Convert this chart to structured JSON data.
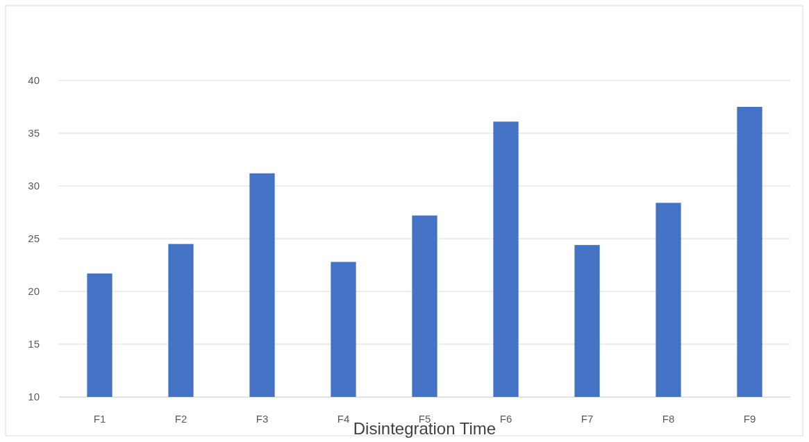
{
  "chart_data": {
    "type": "bar",
    "xlabel": "Disintegration Time",
    "categories": [
      "F1",
      "F2",
      "F3",
      "F4",
      "F5",
      "F6",
      "F7",
      "F8",
      "F9"
    ],
    "values": [
      21.7,
      24.5,
      31.2,
      22.8,
      27.2,
      36.1,
      24.4,
      28.4,
      37.5
    ],
    "color": "#4472c4",
    "ylim": [
      10,
      40
    ],
    "yticks": [
      10,
      15,
      20,
      25,
      30,
      35,
      40
    ],
    "grid": "y"
  }
}
